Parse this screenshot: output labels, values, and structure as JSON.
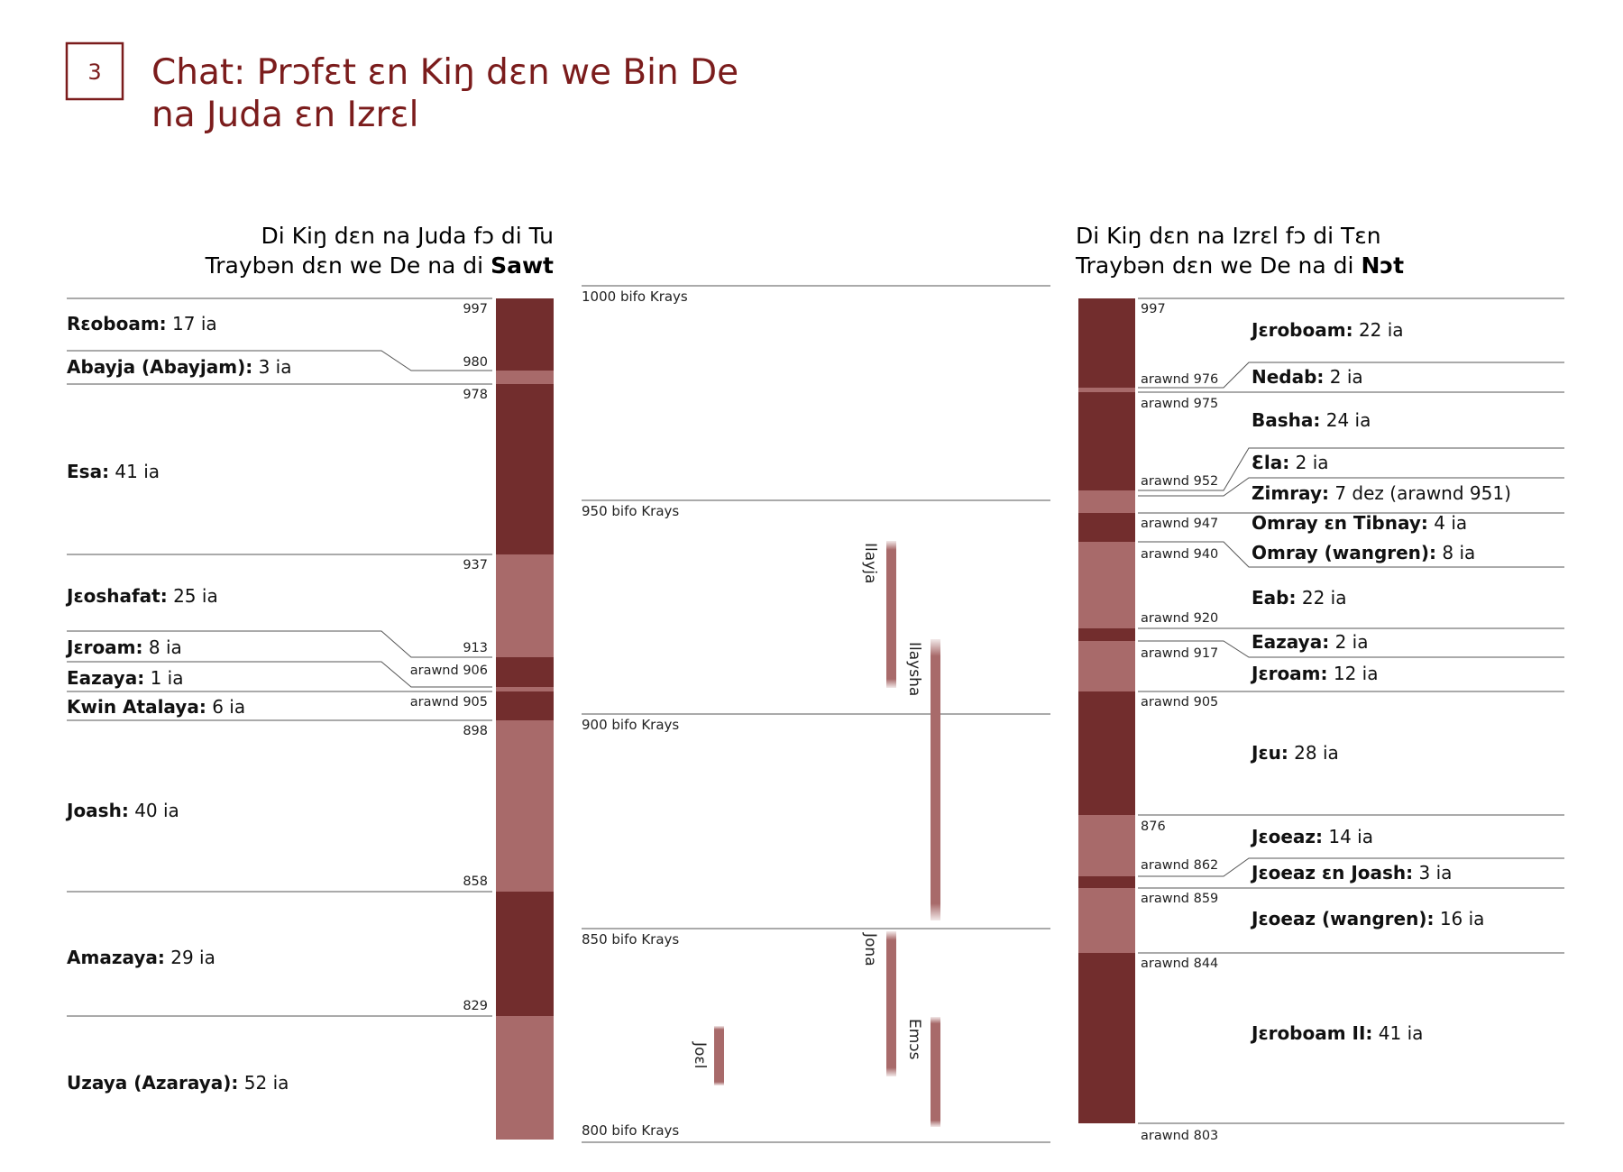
{
  "figure_number": "3",
  "title_line1": "Chat: Prɔfɛt ɛn Kiŋ dɛn we Bin De",
  "title_line2": "na Juda ɛn Izrɛl",
  "colors": {
    "accent": "#7b1c1c",
    "dark": "#722d2d",
    "light": "#a86a6a",
    "rule": "#555555"
  },
  "judah": {
    "header_line1": "Di Kiŋ dɛn na Juda fɔ di Tu",
    "header_line2_pre": "Traybən dɛn we De na di ",
    "header_line2_bold": "Sawt",
    "kings": [
      {
        "name": "Rɛoboam:",
        "reign": "17 ia",
        "start": "997",
        "tone": "dark"
      },
      {
        "name": "Abayja (Abayjam):",
        "reign": "3 ia",
        "start": "980",
        "tone": "light"
      },
      {
        "name": "Esa:",
        "reign": "41 ia",
        "start": "978",
        "tone": "dark"
      },
      {
        "name": "Jɛoshafat:",
        "reign": "25 ia",
        "start": "937",
        "tone": "light"
      },
      {
        "name": "Jɛroam:",
        "reign": "8 ia",
        "start": "913",
        "tone": "dark"
      },
      {
        "name": "Eazaya:",
        "reign": "1 ia",
        "start": "arawnd 906",
        "tone": "light"
      },
      {
        "name": "Kwin Atalaya:",
        "reign": "6 ia",
        "start": "arawnd 905",
        "tone": "dark"
      },
      {
        "name": "Joash:",
        "reign": "40 ia",
        "start": "898",
        "tone": "light"
      },
      {
        "name": "Amazaya:",
        "reign": "29 ia",
        "start": "858",
        "tone": "dark"
      },
      {
        "name": "Uzaya (Azaraya):",
        "reign": "52 ia",
        "start": "829",
        "tone": "light"
      }
    ]
  },
  "timeline": {
    "marks": [
      "1000 bifo Krays",
      "950 bifo Krays",
      "900 bifo Krays",
      "850 bifo Krays",
      "800 bifo Krays"
    ],
    "prophets": [
      "Ilayja",
      "Ilaysha",
      "Jona",
      "Emɔs",
      "Joɛl"
    ]
  },
  "israel": {
    "header_line1": "Di Kiŋ dɛn na Izrɛl fɔ di Tɛn",
    "header_line2_pre": "Traybən dɛn we De na di ",
    "header_line2_bold": "Nɔt",
    "kings": [
      {
        "name": "Jɛroboam:",
        "reign": "22 ia",
        "start": "997",
        "tone": "dark"
      },
      {
        "name": "Nedab:",
        "reign": "2 ia",
        "start": "arawnd 976",
        "tone": "light"
      },
      {
        "name": "Basha:",
        "reign": "24 ia",
        "start": "arawnd 975",
        "tone": "dark"
      },
      {
        "name": "Ɛla:",
        "reign": "2 ia",
        "start": "arawnd 952",
        "tone": "light"
      },
      {
        "name": "Zimray:",
        "reign": "7 dez (arawnd 951)",
        "start": "",
        "tone": "light"
      },
      {
        "name": "Omray ɛn Tibnay:",
        "reign": "4 ia",
        "start": "arawnd 947",
        "tone": "dark"
      },
      {
        "name": "Omray (wangren):",
        "reign": "8 ia",
        "start": "arawnd 940",
        "tone": "light"
      },
      {
        "name": "Eab:",
        "reign": "22 ia",
        "start": "arawnd 920",
        "tone": "light"
      },
      {
        "name": "Eazaya:",
        "reign": "2 ia",
        "start": "arawnd 917",
        "tone": "dark"
      },
      {
        "name": "Jɛroam:",
        "reign": "12 ia",
        "start": "",
        "tone": "light"
      },
      {
        "name": "Jɛu:",
        "reign": "28 ia",
        "start": "arawnd 905",
        "tone": "dark"
      },
      {
        "name": "Jɛoeaz:",
        "reign": "14 ia",
        "start": "876",
        "tone": "light"
      },
      {
        "name": "Jɛoeaz ɛn Joash:",
        "reign": "3 ia",
        "start": "arawnd 862",
        "tone": "dark"
      },
      {
        "name": "Jɛoeaz (wangren):",
        "reign": "16 ia",
        "start": "arawnd 859",
        "tone": "light"
      },
      {
        "name": "Jɛroboam II:",
        "reign": "41 ia",
        "start": "arawnd 844",
        "tone": "dark"
      }
    ],
    "end_label": "arawnd 803"
  }
}
